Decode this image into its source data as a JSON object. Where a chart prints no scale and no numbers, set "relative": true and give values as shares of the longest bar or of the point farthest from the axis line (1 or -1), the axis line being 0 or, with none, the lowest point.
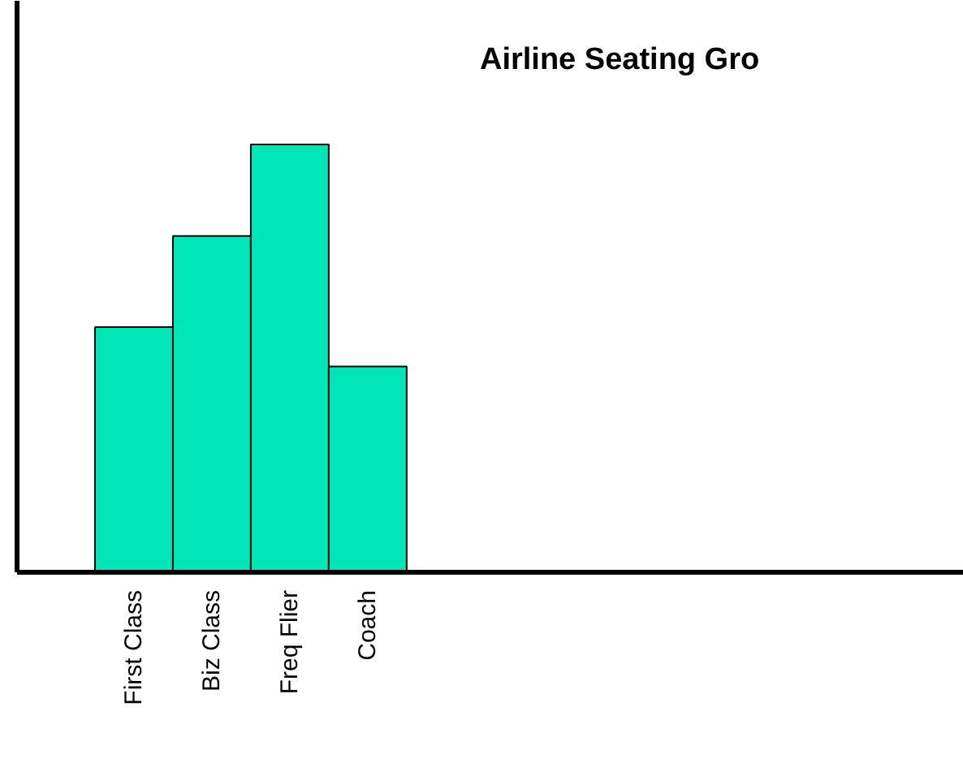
{
  "chart_data": {
    "type": "bar",
    "title": "Airline Seating Gro",
    "relative": true,
    "categories": [
      "First Class",
      "Biz Class",
      "Freq Flier",
      "Coach"
    ],
    "values": [
      0.573,
      0.786,
      1,
      0.481
    ],
    "color": "#00e6b8",
    "grid": false
  }
}
